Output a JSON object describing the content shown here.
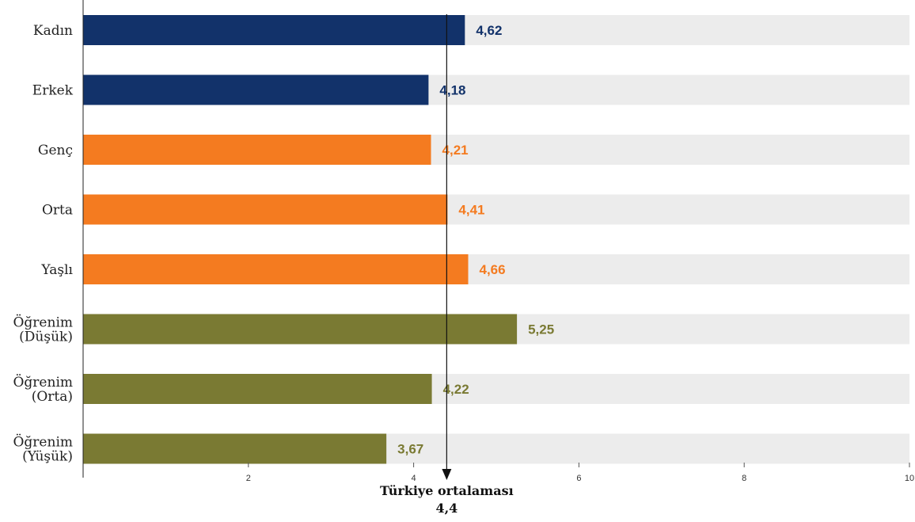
{
  "chart_data": {
    "type": "bar",
    "orientation": "horizontal",
    "categories": [
      [
        "Kadın"
      ],
      [
        "Erkek"
      ],
      [
        "Genç"
      ],
      [
        "Orta"
      ],
      [
        "Yaşlı"
      ],
      [
        "Öğrenim",
        "(Düşük)"
      ],
      [
        "Öğrenim",
        "(Orta)"
      ],
      [
        "Öğrenim",
        "(Yüşük)"
      ]
    ],
    "values": [
      4.62,
      4.18,
      4.21,
      4.41,
      4.66,
      5.25,
      4.22,
      3.67
    ],
    "value_labels": [
      "4,62",
      "4,18",
      "4,21",
      "4,41",
      "4,66",
      "5,25",
      "4,22",
      "3,67"
    ],
    "bar_colors": [
      "#12326a",
      "#12326a",
      "#f47b20",
      "#f47b20",
      "#f47b20",
      "#7a7a33",
      "#7a7a33",
      "#7a7a33"
    ],
    "background_track_color": "#ececec",
    "xlim": [
      0,
      10
    ],
    "xticks": [
      2,
      4,
      6,
      8,
      10
    ],
    "reference_line": {
      "value": 4.4,
      "label": "Türkiye ortalaması",
      "value_label": "4,4"
    }
  }
}
